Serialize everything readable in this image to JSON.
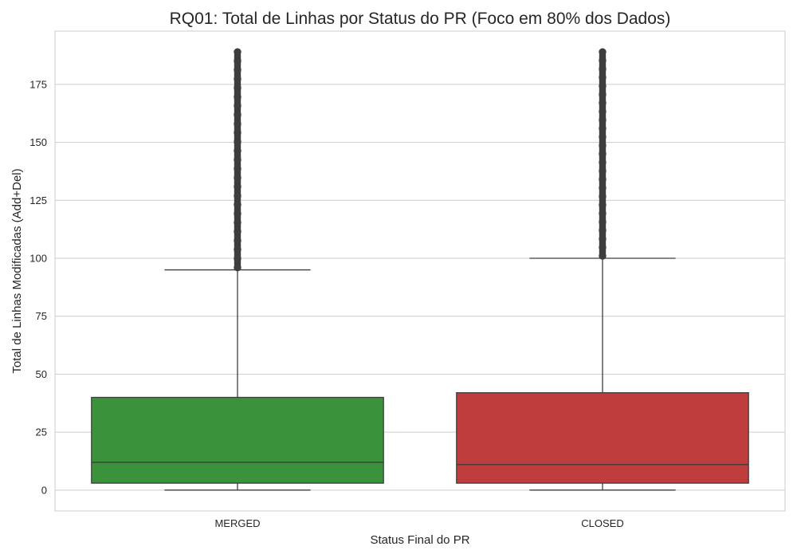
{
  "chart_data": {
    "type": "box",
    "title": "RQ01: Total de Linhas por Status do PR (Foco em 80% dos Dados)",
    "xlabel": "Status Final do PR",
    "ylabel": "Total de Linhas Modificadas (Add+Del)",
    "ylim": [
      -9,
      198
    ],
    "yticks": [
      0,
      25,
      50,
      75,
      100,
      125,
      150,
      175
    ],
    "grid": true,
    "categories": [
      "MERGED",
      "CLOSED"
    ],
    "boxes": [
      {
        "category": "MERGED",
        "whisker_low": 0,
        "q1": 3,
        "median": 12,
        "q3": 40,
        "whisker_high": 95,
        "outliers_from": 96,
        "outliers_to": 189,
        "color": "#3a923a"
      },
      {
        "category": "CLOSED",
        "whisker_low": 0,
        "q1": 3,
        "median": 11,
        "q3": 42,
        "whisker_high": 100,
        "outliers_from": 101,
        "outliers_to": 189,
        "color": "#c03d3e"
      }
    ]
  }
}
